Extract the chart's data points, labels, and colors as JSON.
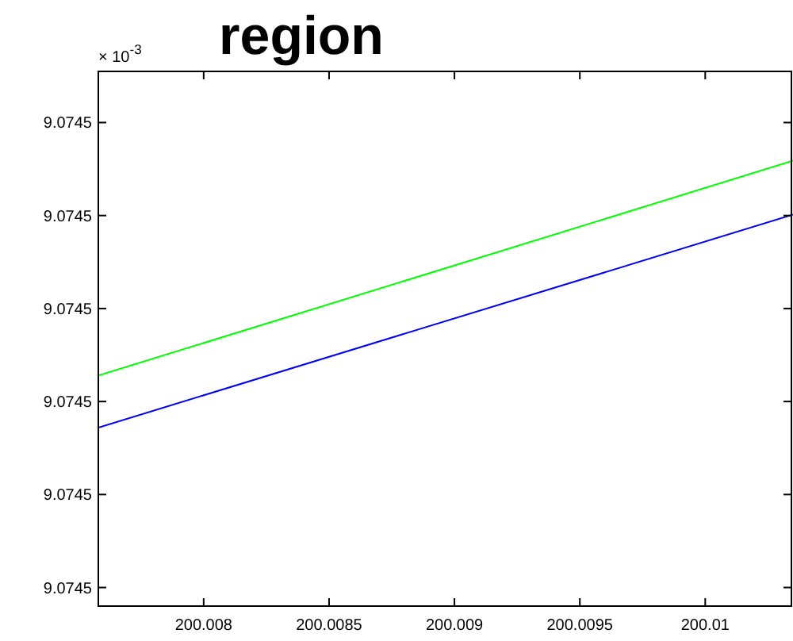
{
  "chart_data": {
    "type": "line",
    "title": "region",
    "ylabel": "× 10$^{-3}$",
    "x": [
      200.00758,
      200.01035
    ],
    "series": [
      {
        "color": "#00ff00",
        "values": [
          9.07450228,
          9.07450459
        ]
      },
      {
        "color": "#0000ff",
        "values": [
          9.07450172,
          9.07450401
        ]
      }
    ],
    "xlim": [
      200.00758,
      200.01035
    ],
    "xticks": [
      200.008,
      200.0085,
      200.009,
      200.0095,
      200.01
    ],
    "ylim": [
      9.0744998,
      9.07450555
    ],
    "yticks": [
      {
        "value": 9.0745,
        "label": "9.0745"
      },
      {
        "value": 9.074501,
        "label": "9.0745"
      },
      {
        "value": 9.074502,
        "label": "9.0745"
      },
      {
        "value": 9.074503,
        "label": "9.0745"
      },
      {
        "value": 9.074504,
        "label": "9.0745"
      },
      {
        "value": 9.074505,
        "label": "9.0745"
      }
    ],
    "grid": false,
    "marker": "none",
    "line_style": "solid"
  }
}
